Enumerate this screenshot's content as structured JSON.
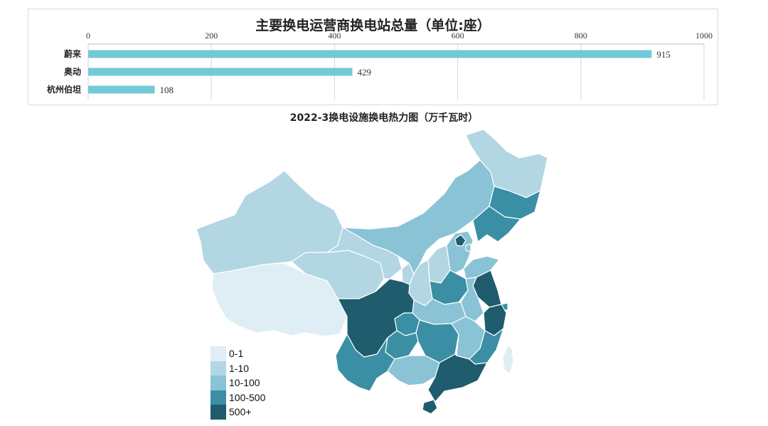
{
  "bar_chart": {
    "title": "主要换电运营商换电站总量（单位:座）"
  },
  "map_chart": {
    "title": "2022-3换电设施换电热力图（万千瓦时）"
  },
  "legend": [
    {
      "label": "0-1",
      "color": "#deeef4"
    },
    {
      "label": "1-10",
      "color": "#b3d6e3"
    },
    {
      "label": "10-100",
      "color": "#8ac3d6"
    },
    {
      "label": "100-500",
      "color": "#3a8fa4"
    },
    {
      "label": "500+",
      "color": "#1f5c6d"
    }
  ],
  "chart_data": [
    {
      "type": "bar",
      "orientation": "horizontal",
      "title": "主要换电运营商换电站总量（单位:座）",
      "categories": [
        "蔚来",
        "奥动",
        "杭州伯坦"
      ],
      "values": [
        915,
        429,
        108
      ],
      "xlim": [
        0,
        1000
      ],
      "xticks": [
        0,
        200,
        400,
        600,
        800,
        1000
      ],
      "axis_position": "top",
      "grid": true,
      "bar_color": "#72c9d6"
    },
    {
      "type": "heatmap",
      "subtype": "choropleth-map",
      "title": "2022-3换电设施换电热力图（万千瓦时）",
      "legend_position": "bottom-left",
      "bins": [
        "0-1",
        "1-10",
        "10-100",
        "100-500",
        "500+"
      ]
    }
  ]
}
